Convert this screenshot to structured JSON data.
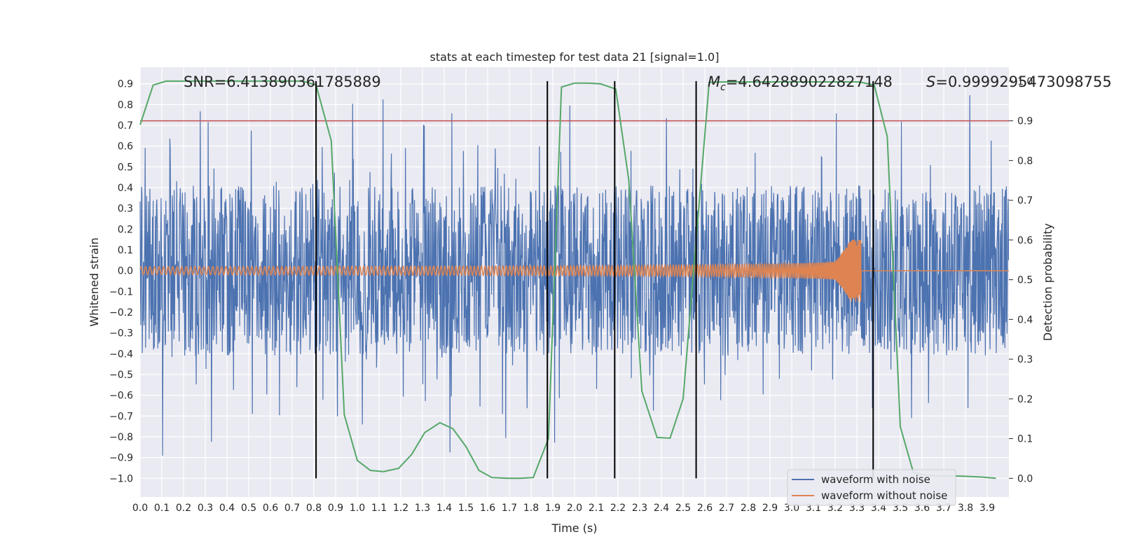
{
  "chart_data": {
    "type": "line",
    "title": "stats at each timestep for test data 21 [signal=1.0]",
    "xlabel": "Time (s)",
    "ylabel": "Whitened strain",
    "y2label": "Detection probability",
    "xlim": [
      0.0,
      4.0
    ],
    "ylim": [
      -1.09,
      0.98
    ],
    "y2lim": [
      -0.047,
      1.035
    ],
    "x_ticks": [
      "0.0",
      "0.1",
      "0.2",
      "0.3",
      "0.4",
      "0.5",
      "0.6",
      "0.7",
      "0.8",
      "0.9",
      "1.0",
      "1.1",
      "1.2",
      "1.3",
      "1.4",
      "1.5",
      "1.6",
      "1.7",
      "1.8",
      "1.9",
      "2.0",
      "2.1",
      "2.2",
      "2.3",
      "2.4",
      "2.5",
      "2.6",
      "2.7",
      "2.8",
      "2.9",
      "3.0",
      "3.1",
      "3.2",
      "3.3",
      "3.4",
      "3.5",
      "3.6",
      "3.7",
      "3.8",
      "3.9"
    ],
    "y_ticks": [
      "0.9",
      "0.8",
      "0.7",
      "0.6",
      "0.5",
      "0.4",
      "0.3",
      "0.2",
      "0.1",
      "0.0",
      "−0.1",
      "−0.2",
      "−0.3",
      "−0.4",
      "−0.5",
      "−0.6",
      "−0.7",
      "−0.8",
      "−0.9",
      "−1.0"
    ],
    "y2_ticks": [
      "1.0",
      "0.9",
      "0.8",
      "0.7",
      "0.6",
      "0.5",
      "0.4",
      "0.3",
      "0.2",
      "0.1",
      "0.0"
    ],
    "threshold": 0.9,
    "vlines": [
      0.81,
      1.875,
      2.185,
      2.56,
      3.375
    ],
    "annotations": {
      "snr": "SNR=6.413890361785889",
      "mc_symbol": "M",
      "mc_sub": "c",
      "mc_value": "=4.642889022827148",
      "s_symbol": "S",
      "s_value": "=0.9999295473098755"
    },
    "series": [
      {
        "name": "waveform with noise",
        "color": "#4c72b0",
        "axis": "left",
        "description": "noisy whitened strain, amplitude approx ±0.5 with spikes to ±1.0"
      },
      {
        "name": "waveform without noise",
        "color": "#dd8452",
        "axis": "left",
        "description": "chirp signal, amplitude grows from ~0.02 to ~0.15, merger at ~3.3 s then zero"
      },
      {
        "name": "detection probability",
        "color": "#55a868",
        "axis": "right",
        "x": [
          0.0,
          0.06,
          0.12,
          0.19,
          0.25,
          0.31,
          0.38,
          0.44,
          0.5,
          0.56,
          0.62,
          0.69,
          0.75,
          0.81,
          0.88,
          0.94,
          1.0,
          1.06,
          1.12,
          1.19,
          1.25,
          1.31,
          1.38,
          1.44,
          1.5,
          1.56,
          1.62,
          1.69,
          1.75,
          1.81,
          1.88,
          1.94,
          2.0,
          2.06,
          2.12,
          2.19,
          2.25,
          2.31,
          2.38,
          2.44,
          2.5,
          2.56,
          2.62,
          2.69,
          2.75,
          2.81,
          2.88,
          2.94,
          3.0,
          3.06,
          3.12,
          3.19,
          3.25,
          3.31,
          3.38,
          3.44,
          3.5,
          3.56,
          3.62,
          3.69,
          3.75,
          3.81,
          3.88,
          3.94
        ],
        "values": [
          0.89,
          0.99,
          1.0,
          1.0,
          1.0,
          1.0,
          1.0,
          1.0,
          1.0,
          1.0,
          1.0,
          1.0,
          1.0,
          0.99,
          0.85,
          0.16,
          0.045,
          0.02,
          0.017,
          0.025,
          0.06,
          0.115,
          0.14,
          0.125,
          0.08,
          0.02,
          0.002,
          0.0,
          0.0,
          0.002,
          0.1,
          0.985,
          0.995,
          0.995,
          0.993,
          0.98,
          0.75,
          0.22,
          0.103,
          0.101,
          0.2,
          0.6,
          0.997,
          0.998,
          0.998,
          0.998,
          0.998,
          0.998,
          0.998,
          0.998,
          0.998,
          0.998,
          0.998,
          0.998,
          0.99,
          0.86,
          0.13,
          0.015,
          0.007,
          0.006,
          0.006,
          0.005,
          0.003,
          0.0
        ]
      }
    ],
    "legend_position": "lower-right"
  }
}
